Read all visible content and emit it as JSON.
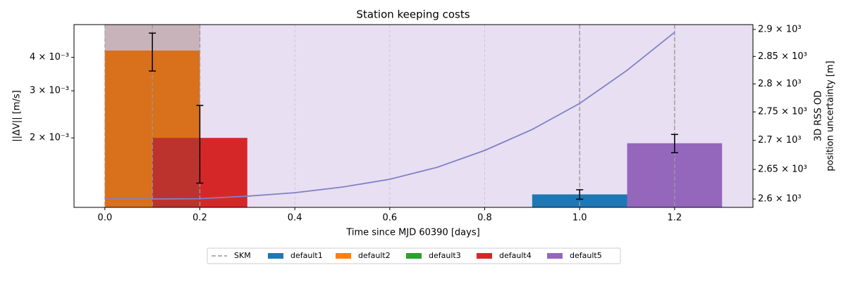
{
  "chart_data": {
    "type": "bar",
    "title": "Station keeping costs",
    "xlabel": "Time since MJD 60390 [days]",
    "ylabel": "||ΔV|| [m/s]",
    "y2label": [
      "3D RSS OD",
      "position uncertainty [m]"
    ],
    "xlim": [
      -0.065,
      1.365
    ],
    "xticks": [
      {
        "value": 0,
        "label": "0.0"
      },
      0.2,
      0.4,
      0.6,
      0.8,
      {
        "value": 1,
        "label": "1.0"
      },
      1.2
    ],
    "ylim": [
      0.0011,
      0.0053
    ],
    "yscale": "log",
    "yticks": [
      {
        "value": 0.002,
        "label": "2 × 10⁻³"
      },
      {
        "value": 0.003,
        "label": "3 × 10⁻³"
      },
      {
        "value": 0.004,
        "label": "4 × 10⁻³"
      }
    ],
    "y2lim": [
      2586,
      2909
    ],
    "y2scale": "log",
    "y2ticks": [
      {
        "value": 2600,
        "label": "2.6 × 10³"
      },
      {
        "value": 2650,
        "label": "2.65 × 10³"
      },
      {
        "value": 2700,
        "label": "2.7 × 10³"
      },
      {
        "value": 2750,
        "label": "2.75 × 10³"
      },
      {
        "value": 2800,
        "label": "2.8 × 10³"
      },
      {
        "value": 2850,
        "label": "2.85 × 10³"
      },
      {
        "value": 2900,
        "label": "2.9 × 10³"
      }
    ],
    "grid": true,
    "legend": "bottom",
    "bar_width": 0.2,
    "shade_from": 0,
    "shade_color": "#e8dff2",
    "skm": {
      "name": "SKM",
      "color": "#999999",
      "x": [
        0,
        0.1,
        0.2,
        1.0,
        1.2
      ]
    },
    "series": [
      {
        "name": "default1",
        "color": "#1f77b4",
        "x": [
          1.0
        ],
        "values": [
          0.00123
        ],
        "errors": [
          5e-05
        ]
      },
      {
        "name": "default2",
        "color": "#ff7f0e",
        "x": [
          0.1
        ],
        "values": [
          0.00424
        ],
        "errors": [
          0.000685
        ]
      },
      {
        "name": "default3",
        "color": "#2ca02c",
        "x": [],
        "values": [],
        "errors": []
      },
      {
        "name": "default4",
        "color": "#d62728",
        "x": [
          0.2
        ],
        "values": [
          0.002
        ],
        "errors": [
          0.000645
        ]
      },
      {
        "name": "default5",
        "color": "#9467bd",
        "x": [
          1.2
        ],
        "values": [
          0.00191
        ],
        "errors": [
          0.00015
        ]
      }
    ],
    "uncertainty": {
      "color": "#8080c8",
      "axis": "y2",
      "x": [
        0,
        0.1,
        0.2,
        0.3,
        0.4,
        0.5,
        0.6,
        0.7,
        0.8,
        0.9,
        1.0,
        1.1,
        1.2
      ],
      "values": [
        2600,
        2600,
        2600.5,
        2604.7,
        2610.6,
        2620,
        2633.3,
        2653.6,
        2682.6,
        2719,
        2765,
        2824.7,
        2894.6
      ]
    }
  }
}
